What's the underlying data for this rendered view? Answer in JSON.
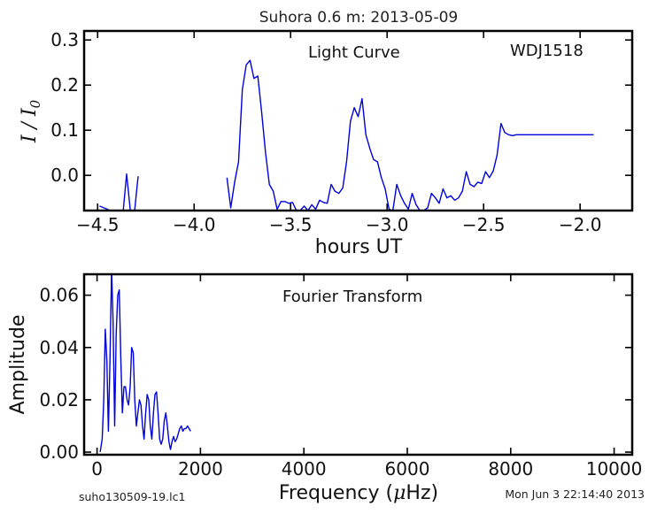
{
  "figure": {
    "title": "Suhora 0.6 m:  2013-05-09",
    "footer_left": "suho130509-19.lc1",
    "footer_right": "Mon Jun  3 22:14:40 2013",
    "line_color": "#0000dd"
  },
  "chart_data": [
    {
      "type": "line",
      "annotation_left": "Light Curve",
      "annotation_right": "WDJ1518",
      "xlabel": "hours UT",
      "ylabel": "I / I",
      "ylabel_sub": "0",
      "xlim": [
        -4.57,
        -1.73
      ],
      "ylim": [
        -0.078,
        0.32
      ],
      "xticks": [
        -4.5,
        -4.0,
        -3.5,
        -3.0,
        -2.5,
        -2.0
      ],
      "xtick_labels": [
        "−4.5",
        "−4.0",
        "−3.5",
        "−3.0",
        "−2.5",
        "−2.0"
      ],
      "yticks": [
        0.0,
        0.1,
        0.2,
        0.3
      ],
      "ytick_labels": [
        "0.0",
        "0.1",
        "0.2",
        "0.3"
      ],
      "segments": [
        {
          "x": [
            -4.49,
            -4.45,
            -4.41,
            -4.37,
            -4.35,
            -4.33,
            -4.31,
            -4.29
          ],
          "y": [
            -0.068,
            -0.075,
            -0.085,
            -0.09,
            0.003,
            -0.08,
            -0.085,
            -0.002
          ]
        },
        {
          "x": [
            -3.83,
            -3.81,
            -3.79,
            -3.77,
            -3.75,
            -3.73,
            -3.71,
            -3.69,
            -3.67,
            -3.65,
            -3.63,
            -3.61,
            -3.59,
            -3.57,
            -3.55,
            -3.53,
            -3.51,
            -3.49,
            -3.47,
            -3.45,
            -3.43,
            -3.41,
            -3.39,
            -3.37,
            -3.35,
            -3.33,
            -3.31,
            -3.29,
            -3.27,
            -3.25,
            -3.23,
            -3.21,
            -3.19,
            -3.17,
            -3.15,
            -3.13,
            -3.11,
            -3.09,
            -3.07,
            -3.05,
            -3.03,
            -3.01,
            -2.99,
            -2.97,
            -2.95,
            -2.93,
            -2.91,
            -2.89,
            -2.87,
            -2.85,
            -2.83,
            -2.81,
            -2.79,
            -2.77,
            -2.75,
            -2.73,
            -2.71,
            -2.69,
            -2.67,
            -2.65,
            -2.63,
            -2.61,
            -2.59,
            -2.57,
            -2.55,
            -2.53,
            -2.51,
            -2.49,
            -2.47,
            -2.45,
            -2.43,
            -2.41,
            -2.39,
            -2.37,
            -2.35,
            -2.33,
            -2.31,
            -2.29,
            -2.27,
            -2.25,
            -2.23,
            -2.21,
            -2.19,
            -2.17,
            -2.15,
            -2.13,
            -2.11,
            -2.09,
            -2.07,
            -2.05,
            -2.03,
            -2.01,
            -1.99,
            -1.97,
            -1.95,
            -1.93
          ],
          "y": [
            -0.005,
            -0.072,
            -0.015,
            0.03,
            0.19,
            0.245,
            0.255,
            0.215,
            0.22,
            0.14,
            0.05,
            -0.02,
            -0.035,
            -0.075,
            -0.058,
            -0.058,
            -0.062,
            -0.06,
            -0.078,
            -0.078,
            -0.068,
            -0.078,
            -0.065,
            -0.075,
            -0.055,
            -0.06,
            -0.062,
            -0.02,
            -0.035,
            -0.04,
            -0.028,
            0.03,
            0.12,
            0.15,
            0.13,
            0.17,
            0.09,
            0.06,
            0.035,
            0.03,
            -0.005,
            -0.03,
            -0.075,
            -0.078,
            -0.02,
            -0.045,
            -0.062,
            -0.075,
            -0.04,
            -0.065,
            -0.078,
            -0.078,
            -0.072,
            -0.04,
            -0.05,
            -0.062,
            -0.03,
            -0.05,
            -0.045,
            -0.055,
            -0.05,
            -0.035,
            0.008,
            -0.02,
            -0.025,
            -0.015,
            -0.018,
            0.008,
            -0.005,
            0.01,
            0.045,
            0.115,
            0.095,
            0.09,
            0.088,
            0.09,
            0.09,
            0.09,
            0.09,
            0.09,
            0.09,
            0.09,
            0.09,
            0.09,
            0.09,
            0.09,
            0.09,
            0.09,
            0.09,
            0.09,
            0.09,
            0.09,
            0.09,
            0.09,
            0.09,
            0.09
          ]
        }
      ]
    },
    {
      "type": "line",
      "annotation": "Fourier Transform",
      "xlabel": "Frequency (μHz)",
      "xlabel_prefix": "Frequency (",
      "xlabel_mu": "μ",
      "xlabel_suffix": "Hz)",
      "ylabel": "Amplitude",
      "xlim": [
        -250,
        10350
      ],
      "ylim": [
        -0.001,
        0.068
      ],
      "xticks": [
        0,
        2000,
        4000,
        6000,
        8000,
        10000
      ],
      "xtick_labels": [
        "0",
        "2000",
        "4000",
        "6000",
        "8000",
        "10000"
      ],
      "yticks": [
        0.0,
        0.02,
        0.04,
        0.06
      ],
      "ytick_labels": [
        "0.00",
        "0.02",
        "0.04",
        "0.06"
      ],
      "x": [
        60,
        100,
        130,
        160,
        190,
        220,
        250,
        280,
        310,
        340,
        370,
        400,
        430,
        460,
        490,
        520,
        550,
        580,
        610,
        640,
        670,
        700,
        730,
        760,
        790,
        820,
        850,
        880,
        910,
        940,
        970,
        1000,
        1030,
        1060,
        1090,
        1120,
        1150,
        1180,
        1210,
        1240,
        1270,
        1300,
        1330,
        1360,
        1390,
        1420,
        1450,
        1480,
        1510,
        1540,
        1570,
        1600,
        1630,
        1660,
        1690,
        1720,
        1750,
        1780,
        1810
      ],
      "y": [
        0.0,
        0.005,
        0.02,
        0.047,
        0.035,
        0.008,
        0.035,
        0.07,
        0.05,
        0.01,
        0.045,
        0.06,
        0.062,
        0.035,
        0.015,
        0.025,
        0.025,
        0.02,
        0.018,
        0.025,
        0.04,
        0.038,
        0.02,
        0.01,
        0.015,
        0.02,
        0.018,
        0.01,
        0.005,
        0.015,
        0.022,
        0.02,
        0.01,
        0.005,
        0.015,
        0.022,
        0.023,
        0.015,
        0.005,
        0.003,
        0.005,
        0.012,
        0.015,
        0.01,
        0.004,
        0.001,
        0.004,
        0.006,
        0.004,
        0.005,
        0.007,
        0.009,
        0.01,
        0.008,
        0.009,
        0.009,
        0.01,
        0.009,
        0.008
      ]
    }
  ]
}
